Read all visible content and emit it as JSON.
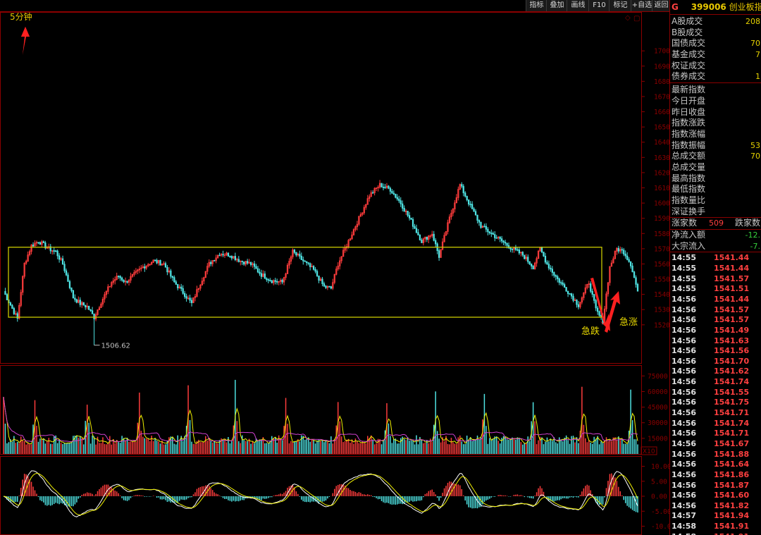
{
  "toolbar": {
    "items": [
      "指标",
      "叠加",
      "画线",
      "F10",
      "标记",
      "+自选",
      "返回"
    ]
  },
  "period_label": "5分钟",
  "annotations": {
    "low_label": "1506.62",
    "drop_label": "急跌",
    "rise_label": "急涨"
  },
  "header": {
    "flag": "G",
    "code": "399006",
    "name": "创业板指"
  },
  "stats_a": [
    {
      "label": "A股成交",
      "value": "208"
    },
    {
      "label": "B股成交",
      "value": ""
    },
    {
      "label": "国债成交",
      "value": "70"
    },
    {
      "label": "基金成交",
      "value": "7"
    },
    {
      "label": "权证成交",
      "value": ""
    },
    {
      "label": "债券成交",
      "value": "1"
    }
  ],
  "stats_b": [
    {
      "label": "最新指数",
      "value": ""
    },
    {
      "label": "今日开盘",
      "value": ""
    },
    {
      "label": "昨日收盘",
      "value": ""
    },
    {
      "label": "指数涨跌",
      "value": ""
    },
    {
      "label": "指数涨幅",
      "value": ""
    },
    {
      "label": "指数振幅",
      "value": "53"
    },
    {
      "label": "总成交额",
      "value": "70"
    },
    {
      "label": "总成交量",
      "value": ""
    },
    {
      "label": "最高指数",
      "value": ""
    },
    {
      "label": "最低指数",
      "value": ""
    },
    {
      "label": "指数量比",
      "value": ""
    },
    {
      "label": "深证换手",
      "value": ""
    }
  ],
  "breadth": {
    "up_label": "涨家数",
    "up_value": "509",
    "down_label": "跌家数"
  },
  "flows": [
    {
      "label": "净流入额",
      "value": "-12."
    },
    {
      "label": "大宗流入",
      "value": "-7."
    }
  ],
  "ticks": [
    [
      "14:55",
      "1541.44"
    ],
    [
      "14:55",
      "1541.44"
    ],
    [
      "14:55",
      "1541.57"
    ],
    [
      "14:55",
      "1541.51"
    ],
    [
      "14:56",
      "1541.44"
    ],
    [
      "14:56",
      "1541.57"
    ],
    [
      "14:56",
      "1541.57"
    ],
    [
      "14:56",
      "1541.49"
    ],
    [
      "14:56",
      "1541.63"
    ],
    [
      "14:56",
      "1541.56"
    ],
    [
      "14:56",
      "1541.70"
    ],
    [
      "14:56",
      "1541.62"
    ],
    [
      "14:56",
      "1541.74"
    ],
    [
      "14:56",
      "1541.55"
    ],
    [
      "14:56",
      "1541.75"
    ],
    [
      "14:56",
      "1541.71"
    ],
    [
      "14:56",
      "1541.74"
    ],
    [
      "14:56",
      "1541.71"
    ],
    [
      "14:56",
      "1541.67"
    ],
    [
      "14:56",
      "1541.88"
    ],
    [
      "14:56",
      "1541.64"
    ],
    [
      "14:56",
      "1541.86"
    ],
    [
      "14:56",
      "1541.87"
    ],
    [
      "14:56",
      "1541.60"
    ],
    [
      "14:56",
      "1541.82"
    ],
    [
      "14:57",
      "1541.94"
    ],
    [
      "14:58",
      "1541.91"
    ],
    [
      "14:58",
      "1541.91"
    ]
  ],
  "colors": {
    "up": "#ff3c3c",
    "down": "#4fe3e3",
    "frame": "#8b0000",
    "box": "#c8c800",
    "arrow": "#ff2020"
  },
  "chart_data": [
    {
      "type": "candlestick",
      "yticks": [
        1520,
        1530,
        1540,
        1550,
        1560,
        1570,
        1580,
        1590,
        1600,
        1610,
        1620,
        1630,
        1640,
        1650,
        1660,
        1670,
        1680,
        1690,
        1700
      ],
      "ylim": [
        1500,
        1720
      ],
      "close_path": [
        [
          0,
          1542
        ],
        [
          8,
          1524
        ],
        [
          12,
          1560
        ],
        [
          16,
          1572
        ],
        [
          20,
          1575
        ],
        [
          26,
          1570
        ],
        [
          30,
          1568
        ],
        [
          34,
          1560
        ],
        [
          40,
          1538
        ],
        [
          44,
          1534
        ],
        [
          48,
          1532
        ],
        [
          52,
          1525
        ],
        [
          56,
          1535
        ],
        [
          62,
          1548
        ],
        [
          66,
          1552
        ],
        [
          70,
          1548
        ],
        [
          74,
          1552
        ],
        [
          80,
          1558
        ],
        [
          86,
          1562
        ],
        [
          92,
          1560
        ],
        [
          98,
          1548
        ],
        [
          104,
          1540
        ],
        [
          108,
          1534
        ],
        [
          112,
          1545
        ],
        [
          118,
          1560
        ],
        [
          124,
          1567
        ],
        [
          130,
          1566
        ],
        [
          136,
          1562
        ],
        [
          142,
          1560
        ],
        [
          148,
          1553
        ],
        [
          154,
          1549
        ],
        [
          160,
          1548
        ],
        [
          166,
          1568
        ],
        [
          172,
          1562
        ],
        [
          178,
          1556
        ],
        [
          184,
          1545
        ],
        [
          188,
          1544
        ],
        [
          192,
          1560
        ],
        [
          198,
          1575
        ],
        [
          204,
          1590
        ],
        [
          210,
          1605
        ],
        [
          216,
          1612
        ],
        [
          222,
          1609
        ],
        [
          228,
          1600
        ],
        [
          234,
          1588
        ],
        [
          240,
          1575
        ],
        [
          246,
          1580
        ],
        [
          250,
          1565
        ],
        [
          256,
          1590
        ],
        [
          262,
          1612
        ],
        [
          268,
          1598
        ],
        [
          274,
          1585
        ],
        [
          280,
          1580
        ],
        [
          286,
          1575
        ],
        [
          292,
          1570
        ],
        [
          298,
          1566
        ],
        [
          304,
          1558
        ],
        [
          308,
          1570
        ],
        [
          312,
          1560
        ],
        [
          318,
          1550
        ],
        [
          324,
          1542
        ],
        [
          330,
          1533
        ],
        [
          336,
          1548
        ],
        [
          340,
          1530
        ],
        [
          344,
          1522
        ],
        [
          348,
          1558
        ],
        [
          352,
          1570
        ],
        [
          356,
          1568
        ],
        [
          360,
          1560
        ],
        [
          364,
          1542
        ]
      ],
      "box": {
        "y_from": 1525,
        "y_to": 1571
      },
      "low_marker": 1506.62
    },
    {
      "type": "bar",
      "name": "volume",
      "yticks": [
        15000,
        30000,
        45000,
        60000,
        75000
      ],
      "ylim": [
        0,
        82000
      ],
      "scale_label": "X10",
      "spike_bars": [
        0,
        18,
        48,
        78,
        106,
        133,
        162,
        192,
        220,
        248,
        276,
        304,
        332,
        360
      ]
    },
    {
      "type": "bar",
      "name": "macd",
      "yticks": [
        "10.00",
        "5.00",
        "0.00",
        "-5.00",
        "-10.00"
      ],
      "ylim": [
        -12,
        12
      ]
    }
  ]
}
